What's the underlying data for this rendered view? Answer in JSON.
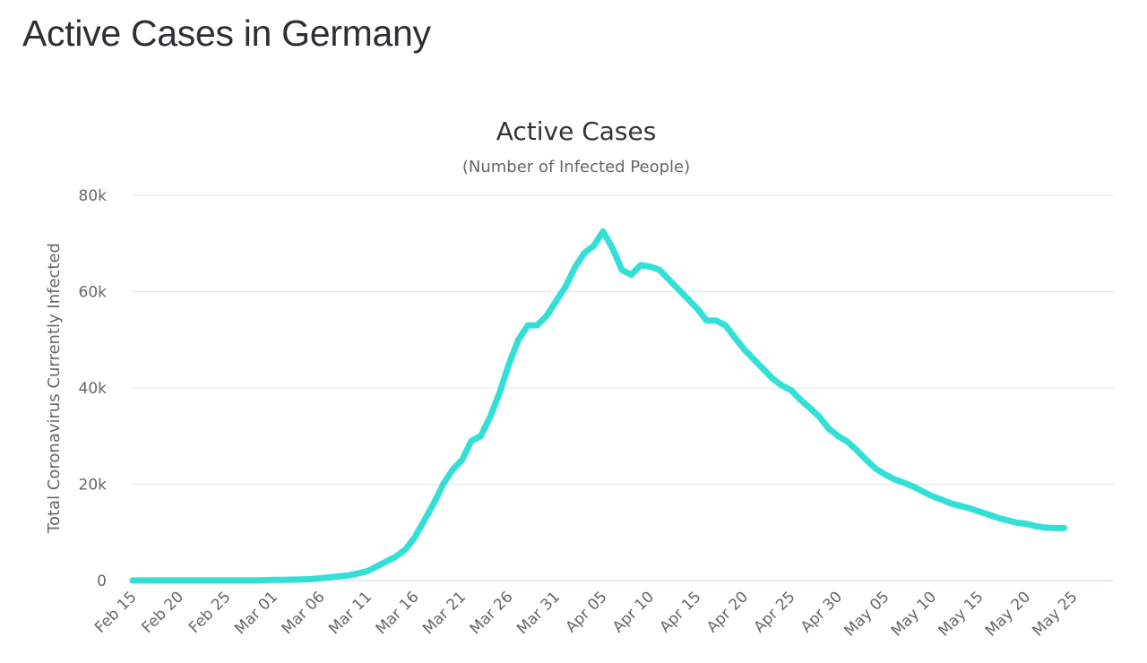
{
  "page": {
    "heading": "Active Cases in Germany"
  },
  "colors": {
    "series": "#33e0d8",
    "grid": "#e6e6e6"
  },
  "chart_data": {
    "type": "line",
    "title": "Active Cases",
    "subtitle": "(Number of Infected People)",
    "xlabel": "",
    "ylabel": "Total Coronavirus Currently Infected",
    "ylim": [
      0,
      80000
    ],
    "yticks": [
      0,
      20000,
      40000,
      60000,
      80000
    ],
    "ytick_labels": [
      "0",
      "20k",
      "40k",
      "60k",
      "80k"
    ],
    "xtick_labels": [
      "Feb 15",
      "Feb 20",
      "Feb 25",
      "Mar 01",
      "Mar 06",
      "Mar 11",
      "Mar 16",
      "Mar 21",
      "Mar 26",
      "Mar 31",
      "Apr 05",
      "Apr 10",
      "Apr 15",
      "Apr 20",
      "Apr 25",
      "Apr 30",
      "May 05",
      "May 10",
      "May 15",
      "May 20",
      "May 25"
    ],
    "x_start": "Feb 15",
    "x_step_days": 1,
    "grid": true,
    "legend": "none",
    "series": [
      {
        "values": [
          16,
          16,
          16,
          16,
          16,
          16,
          16,
          16,
          16,
          16,
          16,
          16,
          16,
          16,
          100,
          150,
          150,
          180,
          250,
          300,
          500,
          700,
          900,
          1100,
          1500,
          2000,
          3000,
          4000,
          5000,
          6500,
          9000,
          12500,
          16000,
          20000,
          23000,
          25000,
          29000,
          30000,
          34000,
          39000,
          45000,
          50000,
          53000,
          53000,
          55000,
          58000,
          61000,
          65000,
          68000,
          69500,
          72500,
          69000,
          64500,
          63500,
          65500,
          65200,
          64500,
          62500,
          60500,
          58500,
          56500,
          54000,
          54000,
          53000,
          50500,
          48000,
          46000,
          44000,
          42000,
          40500,
          39500,
          37500,
          35800,
          34000,
          31500,
          30000,
          28800,
          27000,
          25000,
          23200,
          22000,
          21000,
          20300,
          19500,
          18500,
          17500,
          16800,
          16000,
          15500,
          15000,
          14300,
          13700,
          13000,
          12500,
          12000,
          11800,
          11300,
          11000,
          10900,
          10900
        ]
      }
    ]
  }
}
